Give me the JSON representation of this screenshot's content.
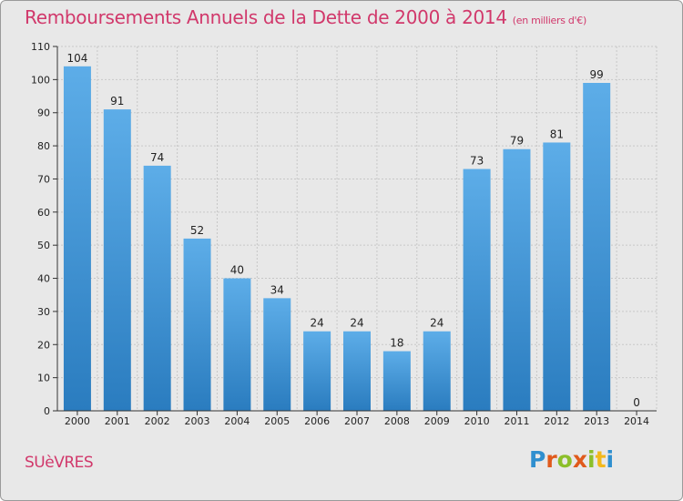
{
  "title": "Remboursements Annuels de la Dette de 2000 à 2014",
  "unit": "(en milliers d'€)",
  "town": "SUèVRES",
  "logo": {
    "letters": [
      {
        "char": "P",
        "color": "#2f8fcf"
      },
      {
        "char": "r",
        "color": "#e05a1c"
      },
      {
        "char": "o",
        "color": "#8cbf2a"
      },
      {
        "char": "x",
        "color": "#e05a1c"
      },
      {
        "char": "i",
        "color": "#8cbf2a"
      },
      {
        "char": "t",
        "color": "#f2b81c"
      },
      {
        "char": "i",
        "color": "#2f8fcf"
      }
    ]
  },
  "chart_data": {
    "type": "bar",
    "title": "Remboursements Annuels de la Dette de 2000 à 2014",
    "xlabel": "",
    "ylabel": "",
    "ylim": [
      0,
      110
    ],
    "yticks": [
      0,
      10,
      20,
      30,
      40,
      50,
      60,
      70,
      80,
      90,
      100,
      110
    ],
    "grid": true,
    "categories": [
      "2000",
      "2001",
      "2002",
      "2003",
      "2004",
      "2005",
      "2006",
      "2007",
      "2008",
      "2009",
      "2010",
      "2011",
      "2012",
      "2013",
      "2014"
    ],
    "values": [
      104,
      91,
      74,
      52,
      40,
      34,
      24,
      24,
      18,
      24,
      73,
      79,
      81,
      99,
      0
    ],
    "bar_color_top": "#5dade8",
    "bar_color_bottom": "#2a7cbf",
    "grid_color": "#c7c7c7",
    "axis_color": "#333333",
    "label_color": "#222222"
  }
}
